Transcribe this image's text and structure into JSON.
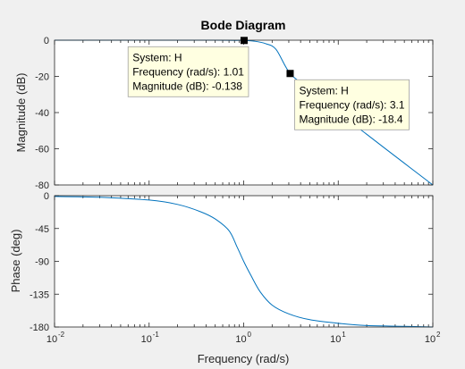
{
  "chart_data": [
    {
      "type": "line",
      "title": "Bode Diagram",
      "ylabel": "Magnitude (dB)",
      "xlabel": "",
      "x_scale": "log",
      "xlim": [
        0.01,
        100
      ],
      "ylim": [
        -80,
        0
      ],
      "yticks": [
        "0",
        "-20",
        "-40",
        "-60",
        "-80"
      ],
      "yticks_values": [
        0,
        -20,
        -40,
        -60,
        -80
      ],
      "series": [
        {
          "x": [
            0.01,
            0.05,
            0.1,
            0.3,
            0.5,
            0.7,
            0.85,
            1.01,
            1.3,
            1.7,
            2.2,
            3.1,
            5,
            10,
            20,
            50,
            100
          ],
          "values": [
            0,
            0,
            0,
            -0.002,
            -0.014,
            -0.04,
            -0.078,
            -0.138,
            -0.53,
            -1.9,
            -5.1,
            -18.4,
            -27,
            -40,
            -52,
            -68,
            -80
          ],
          "color": "#0072bd"
        }
      ],
      "datatips": [
        {
          "marker": {
            "x": 1.01,
            "y": -0.138
          },
          "lines": [
            "System: H",
            "Frequency (rad/s): 1.01",
            "Magnitude (dB): -0.138"
          ]
        },
        {
          "marker": {
            "x": 3.1,
            "y": -18.4
          },
          "lines": [
            "System: H",
            "Frequency (rad/s): 3.1",
            "Magnitude (dB): -18.4"
          ]
        }
      ]
    },
    {
      "type": "line",
      "ylabel": "Phase (deg)",
      "xlabel": "Frequency  (rad/s)",
      "x_scale": "log",
      "xlim": [
        0.01,
        100
      ],
      "ylim": [
        -180,
        0
      ],
      "yticks": [
        "0",
        "-45",
        "-90",
        "-135",
        "-180"
      ],
      "yticks_values": [
        0,
        -45,
        -90,
        -135,
        -180
      ],
      "xticks": [
        {
          "base": "10",
          "exp": "-2",
          "value": 0.01
        },
        {
          "base": "10",
          "exp": "-1",
          "value": 0.1
        },
        {
          "base": "10",
          "exp": "0",
          "value": 1
        },
        {
          "base": "10",
          "exp": "1",
          "value": 10
        },
        {
          "base": "10",
          "exp": "2",
          "value": 100
        }
      ],
      "series": [
        {
          "x": [
            0.01,
            0.03,
            0.1,
            0.2,
            0.35,
            0.5,
            0.7,
            0.85,
            1,
            1.2,
            1.5,
            2,
            3,
            5,
            10,
            20,
            50,
            100
          ],
          "values": [
            -1.1,
            -2.2,
            -6,
            -12,
            -22,
            -32,
            -48,
            -70,
            -90,
            -110,
            -132,
            -150,
            -162,
            -170,
            -175,
            -178,
            -179,
            -180
          ],
          "color": "#0072bd"
        }
      ]
    }
  ]
}
